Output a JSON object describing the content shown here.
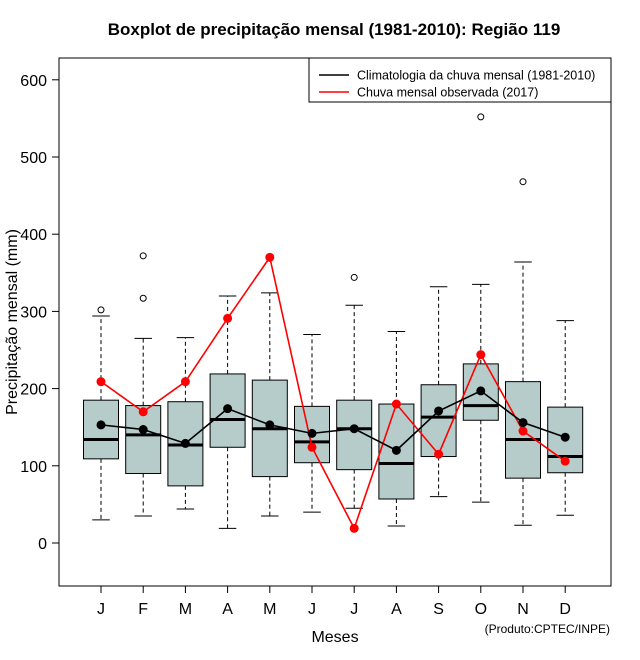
{
  "chart_data": {
    "type": "boxplot",
    "title": "Boxplot de precipitação mensal (1981-2010): Região 119",
    "xlabel": "Meses",
    "ylabel": "Precipitação mensal (mm)",
    "ylim": [
      -55,
      615
    ],
    "yticks": [
      0,
      100,
      200,
      300,
      400,
      500,
      600
    ],
    "categories": [
      "J",
      "F",
      "M",
      "A",
      "M",
      "J",
      "J",
      "A",
      "S",
      "O",
      "N",
      "D"
    ],
    "boxes": [
      {
        "whisker_low": 30,
        "q1": 109,
        "median": 134,
        "q3": 185,
        "whisker_high": 294,
        "outliers": [
          302
        ]
      },
      {
        "whisker_low": 35,
        "q1": 90,
        "median": 140,
        "q3": 178,
        "whisker_high": 265,
        "outliers": [
          317,
          372
        ]
      },
      {
        "whisker_low": 44,
        "q1": 74,
        "median": 127,
        "q3": 183,
        "whisker_high": 266,
        "outliers": []
      },
      {
        "whisker_low": 19,
        "q1": 124,
        "median": 160,
        "q3": 219,
        "whisker_high": 320,
        "outliers": []
      },
      {
        "whisker_low": 35,
        "q1": 86,
        "median": 148,
        "q3": 211,
        "whisker_high": 324,
        "outliers": []
      },
      {
        "whisker_low": 40,
        "q1": 104,
        "median": 131,
        "q3": 177,
        "whisker_high": 270,
        "outliers": []
      },
      {
        "whisker_low": 45,
        "q1": 95,
        "median": 148,
        "q3": 185,
        "whisker_high": 308,
        "outliers": [
          344
        ]
      },
      {
        "whisker_low": 22,
        "q1": 57,
        "median": 103,
        "q3": 180,
        "whisker_high": 274,
        "outliers": []
      },
      {
        "whisker_low": 60,
        "q1": 112,
        "median": 163,
        "q3": 205,
        "whisker_high": 332,
        "outliers": []
      },
      {
        "whisker_low": 53,
        "q1": 159,
        "median": 178,
        "q3": 232,
        "whisker_high": 335,
        "outliers": [
          552
        ]
      },
      {
        "whisker_low": 23,
        "q1": 84,
        "median": 134,
        "q3": 209,
        "whisker_high": 364,
        "outliers": [
          468
        ]
      },
      {
        "whisker_low": 36,
        "q1": 91,
        "median": 112,
        "q3": 176,
        "whisker_high": 288,
        "outliers": []
      }
    ],
    "series": [
      {
        "name": "Climatologia da chuva mensal (1981-2010)",
        "color": "#000000",
        "values": [
          153,
          147,
          129,
          174,
          153,
          142,
          148,
          120,
          171,
          197,
          156,
          137
        ]
      },
      {
        "name": "Chuva mensal observada (2017)",
        "color": "#ff0000",
        "values": [
          209,
          170,
          209,
          291,
          370,
          124,
          19,
          180,
          115,
          244,
          145,
          106
        ]
      }
    ],
    "legend_position": "top-right",
    "box_color": "#b5cccb",
    "credit": "(Produto:CPTEC/INPE)"
  }
}
